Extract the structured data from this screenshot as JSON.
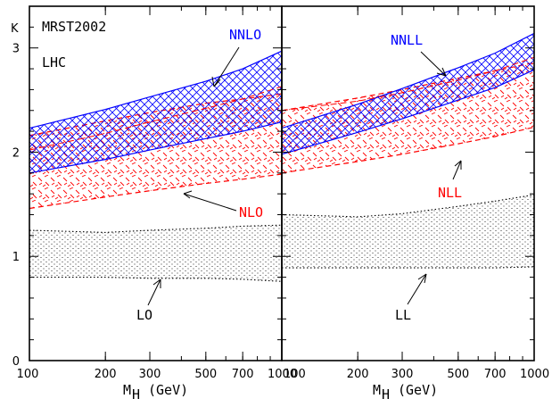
{
  "chart_data": [
    {
      "type": "area",
      "panel": "left",
      "xscale": "log",
      "xlim": [
        100,
        1000
      ],
      "ylim": [
        0,
        3.4
      ],
      "xticks": [
        100,
        200,
        300,
        500,
        700,
        1000
      ],
      "yticks": [
        0,
        1,
        2,
        3
      ],
      "ylabel": "K",
      "xlabel_main": "M",
      "xlabel_sub": "H",
      "xlabel_unit": "(GeV)",
      "annotations": [
        "MRST2002",
        "LHC"
      ],
      "bands": [
        {
          "name": "NNLO",
          "color": "#0000ff",
          "x": [
            100,
            200,
            300,
            500,
            700,
            1000
          ],
          "upper": [
            2.23,
            2.41,
            2.53,
            2.68,
            2.8,
            2.97
          ],
          "central": [
            2.02,
            2.18,
            2.29,
            2.42,
            2.51,
            2.63
          ],
          "lower": [
            1.8,
            1.93,
            2.02,
            2.13,
            2.2,
            2.29
          ]
        },
        {
          "name": "NLO",
          "color": "#ff0000",
          "x": [
            100,
            200,
            300,
            500,
            700,
            1000
          ],
          "upper": [
            2.16,
            2.3,
            2.38,
            2.47,
            2.51,
            2.56
          ],
          "lower": [
            1.46,
            1.57,
            1.63,
            1.7,
            1.74,
            1.79
          ]
        },
        {
          "name": "LO",
          "color": "#000000",
          "x": [
            100,
            200,
            300,
            500,
            700,
            1000
          ],
          "upper": [
            1.25,
            1.23,
            1.25,
            1.27,
            1.29,
            1.3
          ],
          "lower": [
            0.8,
            0.8,
            0.79,
            0.79,
            0.78,
            0.76
          ]
        }
      ]
    },
    {
      "type": "area",
      "panel": "right",
      "xscale": "log",
      "xlim": [
        100,
        1000
      ],
      "ylim": [
        0,
        3.4
      ],
      "xticks": [
        100,
        200,
        300,
        500,
        700,
        1000
      ],
      "yticks": [
        0,
        1,
        2,
        3
      ],
      "xlabel_main": "M",
      "xlabel_sub": "H",
      "xlabel_unit": "(GeV)",
      "bands": [
        {
          "name": "NNLL",
          "color": "#0000ff",
          "x": [
            100,
            200,
            300,
            500,
            700,
            1000
          ],
          "upper": [
            2.23,
            2.46,
            2.61,
            2.81,
            2.95,
            3.14
          ],
          "central": [
            2.4,
            2.49,
            2.57,
            2.69,
            2.78,
            2.91
          ],
          "lower": [
            1.98,
            2.19,
            2.32,
            2.5,
            2.62,
            2.79
          ]
        },
        {
          "name": "NLL",
          "color": "#ff0000",
          "x": [
            100,
            200,
            300,
            500,
            700,
            1000
          ],
          "upper": [
            2.4,
            2.52,
            2.6,
            2.71,
            2.78,
            2.86
          ],
          "lower": [
            1.8,
            1.91,
            1.98,
            2.08,
            2.15,
            2.24
          ]
        },
        {
          "name": "LL",
          "color": "#000000",
          "x": [
            100,
            200,
            300,
            500,
            700,
            1000
          ],
          "upper": [
            1.4,
            1.38,
            1.41,
            1.48,
            1.53,
            1.59
          ],
          "lower": [
            0.89,
            0.89,
            0.89,
            0.89,
            0.89,
            0.9
          ]
        }
      ]
    }
  ],
  "labels": {
    "nnlo": "NNLO",
    "nlo": "NLO",
    "lo": "LO",
    "nnll": "NNLL",
    "nll": "NLL",
    "ll": "LL",
    "mrst": "MRST2002",
    "lhc": "LHC",
    "k": "K"
  },
  "colors": {
    "blue": "#0000ff",
    "red": "#ff0000",
    "black": "#000000"
  }
}
